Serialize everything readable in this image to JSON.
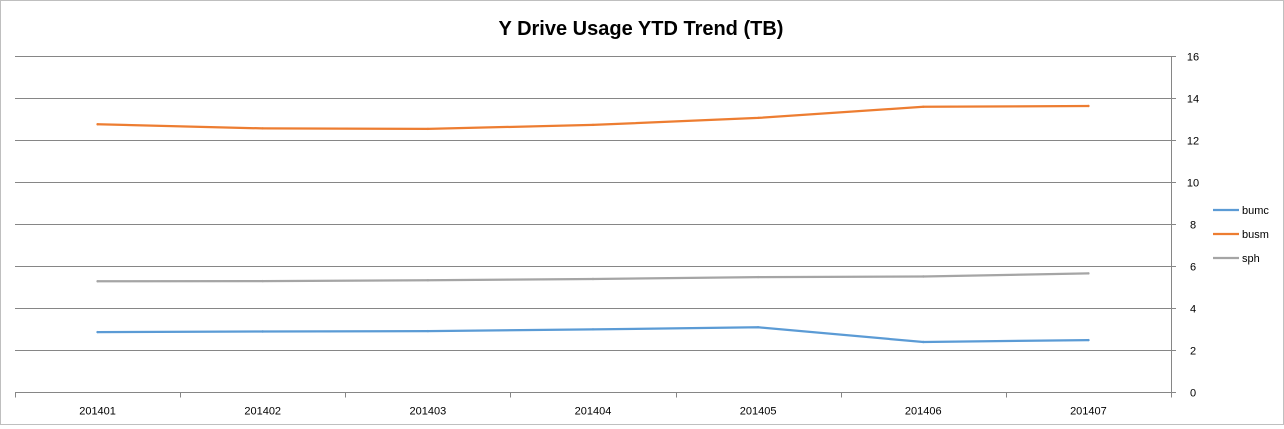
{
  "chart_data": {
    "type": "line",
    "title": "Y Drive Usage YTD Trend (TB)",
    "xlabel": "",
    "ylabel": "",
    "categories": [
      "201401",
      "201402",
      "201403",
      "201404",
      "201405",
      "201406",
      "201407"
    ],
    "ylim": [
      0,
      16
    ],
    "yticks": [
      0,
      2,
      4,
      6,
      8,
      10,
      12,
      14,
      16
    ],
    "y_axis_side": "right",
    "grid": true,
    "legend_position": "right",
    "series": [
      {
        "name": "bumc",
        "color": "#5b9bd5",
        "values": [
          2.85,
          2.88,
          2.9,
          2.98,
          3.08,
          2.38,
          2.47
        ]
      },
      {
        "name": "busm",
        "color": "#ed7d31",
        "values": [
          12.75,
          12.55,
          12.53,
          12.72,
          13.05,
          13.58,
          13.62
        ]
      },
      {
        "name": "sph",
        "color": "#a5a5a5",
        "values": [
          5.27,
          5.28,
          5.32,
          5.38,
          5.47,
          5.5,
          5.65
        ]
      }
    ]
  }
}
